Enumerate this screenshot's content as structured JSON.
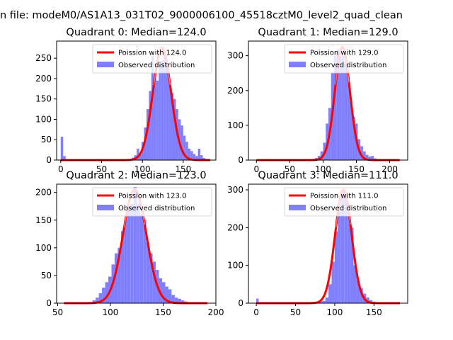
{
  "figure": {
    "suptitle": "n file: modeM0/AS1A13_031T02_9000006100_45518cztM0_level2_quad_clean",
    "colors": {
      "histogram": "#8080ff",
      "poisson": "#ff0000",
      "poisson_highlight": "#ffaaaa",
      "axes": "#000000"
    }
  },
  "chart_data": [
    {
      "type": "bar",
      "title": "Quadrant 0: Median=124.0",
      "xlim": [
        -5,
        190
      ],
      "ylim": [
        0,
        292
      ],
      "xticks": [
        0,
        50,
        100,
        150
      ],
      "yticks": [
        0,
        50,
        100,
        150,
        200,
        250
      ],
      "legend": {
        "position": "upper right",
        "entries": [
          "Poission with 124.0",
          "Observed distribution"
        ]
      },
      "histogram": {
        "name": "Observed distribution",
        "bins": [
          [
            0,
            3,
            57
          ],
          [
            3,
            6,
            10
          ],
          [
            45,
            48,
            1
          ],
          [
            84,
            87,
            2
          ],
          [
            87,
            90,
            6
          ],
          [
            90,
            93,
            12
          ],
          [
            93,
            96,
            28
          ],
          [
            96,
            99,
            14
          ],
          [
            99,
            102,
            45
          ],
          [
            102,
            105,
            80
          ],
          [
            105,
            108,
            125
          ],
          [
            108,
            111,
            170
          ],
          [
            111,
            114,
            255
          ],
          [
            114,
            117,
            205
          ],
          [
            117,
            120,
            195
          ],
          [
            120,
            123,
            232
          ],
          [
            123,
            126,
            245
          ],
          [
            126,
            129,
            255
          ],
          [
            129,
            132,
            225
          ],
          [
            132,
            135,
            195
          ],
          [
            135,
            138,
            165
          ],
          [
            138,
            141,
            150
          ],
          [
            141,
            144,
            125
          ],
          [
            144,
            147,
            100
          ],
          [
            147,
            150,
            85
          ],
          [
            150,
            153,
            60
          ],
          [
            153,
            156,
            45
          ],
          [
            156,
            159,
            28
          ],
          [
            159,
            162,
            22
          ],
          [
            162,
            165,
            15
          ],
          [
            165,
            168,
            10
          ],
          [
            168,
            171,
            28
          ],
          [
            171,
            174,
            12
          ],
          [
            174,
            177,
            5
          ],
          [
            177,
            180,
            3
          ]
        ]
      },
      "poisson": {
        "name": "Poission with 124.0",
        "mean": 124.0,
        "peak": 275,
        "x_range": [
          0,
          183
        ]
      }
    },
    {
      "type": "bar",
      "title": "Quadrant 1: Median=129.0",
      "xlim": [
        -12,
        227
      ],
      "ylim": [
        0,
        342
      ],
      "xticks": [
        0,
        50,
        100,
        150,
        200
      ],
      "yticks": [
        0,
        100,
        200,
        300
      ],
      "legend": {
        "position": "upper right",
        "entries": [
          "Poission with 129.0",
          "Observed distribution"
        ]
      },
      "histogram": {
        "name": "Observed distribution",
        "bins": [
          [
            72,
            76,
            1
          ],
          [
            76,
            80,
            2
          ],
          [
            80,
            84,
            3
          ],
          [
            84,
            88,
            3
          ],
          [
            88,
            92,
            6
          ],
          [
            92,
            96,
            12
          ],
          [
            96,
            100,
            25
          ],
          [
            100,
            104,
            50
          ],
          [
            104,
            108,
            105
          ],
          [
            108,
            112,
            150
          ],
          [
            112,
            116,
            250
          ],
          [
            116,
            120,
            300
          ],
          [
            120,
            124,
            320
          ],
          [
            124,
            128,
            295
          ],
          [
            128,
            132,
            300
          ],
          [
            132,
            136,
            280
          ],
          [
            136,
            140,
            240
          ],
          [
            140,
            144,
            170
          ],
          [
            144,
            148,
            125
          ],
          [
            148,
            152,
            105
          ],
          [
            152,
            156,
            60
          ],
          [
            156,
            160,
            40
          ],
          [
            160,
            164,
            25
          ],
          [
            164,
            168,
            15
          ],
          [
            168,
            172,
            10
          ],
          [
            172,
            176,
            12
          ],
          [
            176,
            180,
            5
          ],
          [
            180,
            184,
            3
          ],
          [
            184,
            188,
            2
          ]
        ]
      },
      "poisson": {
        "name": "Poission with 129.0",
        "mean": 129.0,
        "peak": 325,
        "x_range": [
          0,
          215
        ]
      }
    },
    {
      "type": "bar",
      "title": "Quadrant 2: Median=123.0",
      "xlim": [
        49,
        200
      ],
      "ylim": [
        0,
        215
      ],
      "xticks": [
        50,
        100,
        150,
        200
      ],
      "yticks": [
        0,
        50,
        100,
        150,
        200
      ],
      "legend": {
        "position": "upper right",
        "entries": [
          "Poission with 123.0",
          "Observed distribution"
        ]
      },
      "histogram": {
        "name": "Observed distribution",
        "bins": [
          [
            80,
            83,
            2
          ],
          [
            83,
            86,
            5
          ],
          [
            86,
            89,
            10
          ],
          [
            89,
            92,
            18
          ],
          [
            92,
            95,
            28
          ],
          [
            95,
            98,
            38
          ],
          [
            98,
            101,
            48
          ],
          [
            101,
            104,
            70
          ],
          [
            104,
            107,
            90
          ],
          [
            107,
            110,
            100
          ],
          [
            110,
            113,
            130
          ],
          [
            113,
            116,
            150
          ],
          [
            116,
            119,
            175
          ],
          [
            119,
            122,
            180
          ],
          [
            122,
            125,
            210
          ],
          [
            125,
            128,
            180
          ],
          [
            128,
            131,
            160
          ],
          [
            131,
            134,
            150
          ],
          [
            134,
            137,
            110
          ],
          [
            137,
            140,
            90
          ],
          [
            140,
            143,
            75
          ],
          [
            143,
            146,
            60
          ],
          [
            146,
            149,
            45
          ],
          [
            149,
            152,
            38
          ],
          [
            152,
            155,
            30
          ],
          [
            155,
            158,
            25
          ],
          [
            158,
            161,
            15
          ],
          [
            161,
            164,
            10
          ],
          [
            164,
            167,
            8
          ],
          [
            167,
            170,
            5
          ],
          [
            170,
            173,
            3
          ]
        ]
      },
      "poisson": {
        "name": "Poission with 123.0",
        "mean": 123.0,
        "peak": 205,
        "x_range": [
          56,
          192
        ]
      }
    },
    {
      "type": "bar",
      "title": "Quadrant 3: Median=111.0",
      "xlim": [
        -10,
        193
      ],
      "ylim": [
        0,
        315
      ],
      "xticks": [
        0,
        50,
        100,
        150
      ],
      "yticks": [
        0,
        100,
        200,
        300
      ],
      "legend": {
        "position": "upper right",
        "entries": [
          "Poission with 111.0",
          "Observed distribution"
        ]
      },
      "histogram": {
        "name": "Observed distribution",
        "bins": [
          [
            0,
            3,
            12
          ],
          [
            76,
            80,
            1
          ],
          [
            80,
            84,
            5
          ],
          [
            84,
            88,
            6
          ],
          [
            88,
            92,
            15
          ],
          [
            92,
            96,
            50
          ],
          [
            96,
            100,
            110
          ],
          [
            100,
            104,
            190
          ],
          [
            104,
            108,
            245
          ],
          [
            108,
            112,
            300
          ],
          [
            112,
            116,
            280
          ],
          [
            116,
            120,
            230
          ],
          [
            120,
            124,
            200
          ],
          [
            124,
            128,
            100
          ],
          [
            128,
            132,
            60
          ],
          [
            132,
            136,
            40
          ],
          [
            136,
            140,
            25
          ],
          [
            140,
            144,
            15
          ],
          [
            144,
            148,
            8
          ],
          [
            148,
            152,
            4
          ],
          [
            152,
            156,
            2
          ]
        ]
      },
      "poisson": {
        "name": "Poission with 111.0",
        "mean": 111.0,
        "peak": 300,
        "x_range": [
          0,
          183
        ]
      }
    }
  ]
}
